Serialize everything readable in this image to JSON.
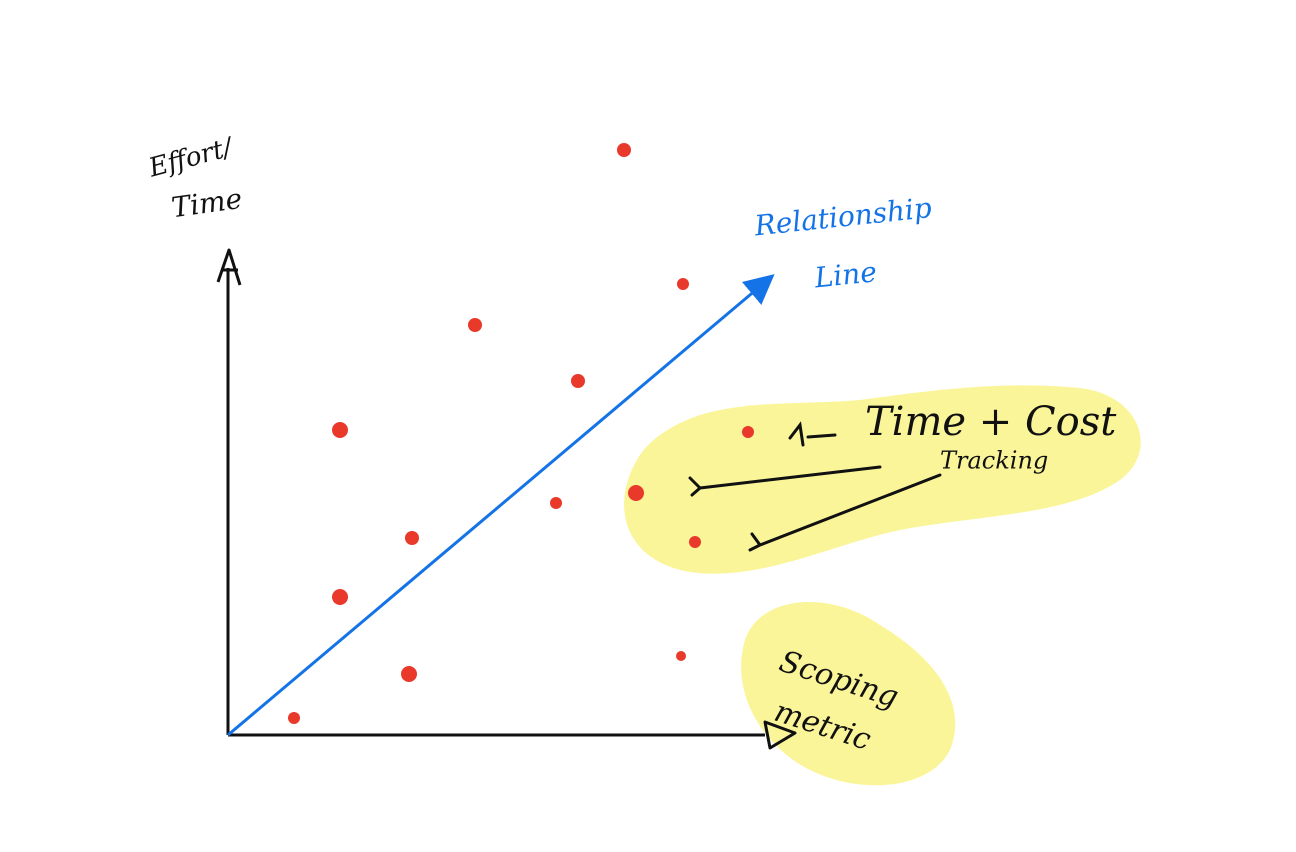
{
  "y_axis_label": {
    "lines": [
      "Effort/",
      "Time"
    ]
  },
  "relationship_label": {
    "lines": [
      "Relationship",
      "Line"
    ]
  },
  "tracking_note": {
    "lines": [
      "Time + Cost",
      "Tracking"
    ]
  },
  "x_axis_label": {
    "lines": [
      "Scoping",
      "metric"
    ]
  }
}
